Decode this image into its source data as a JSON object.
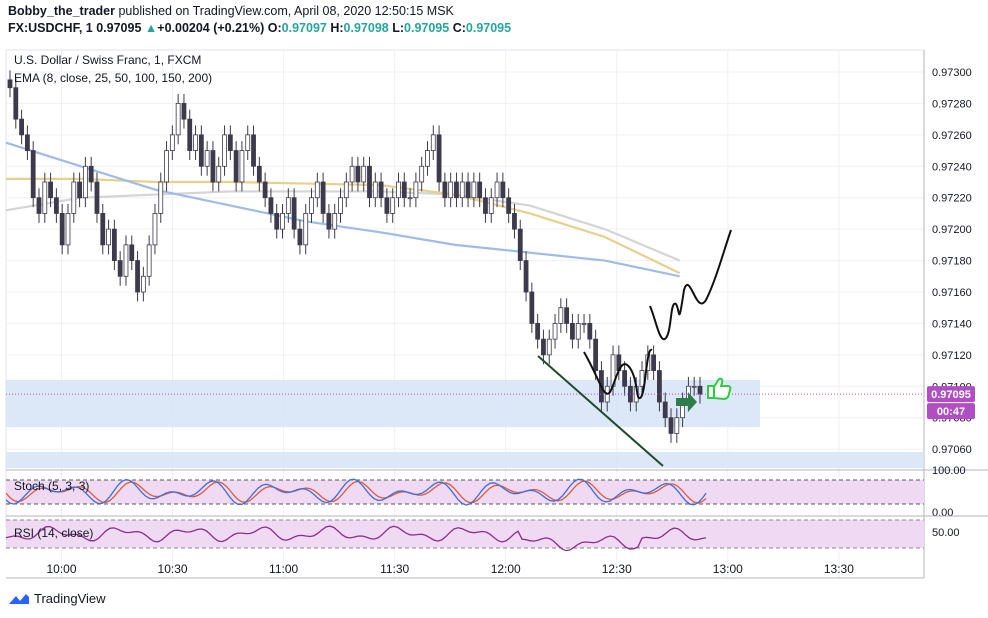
{
  "header": {
    "author": "Bobby_the_trader",
    "published_text": "published on TradingView.com, April 08, 2020 12:50:15 MSK",
    "symbol": "FX:USDCHF, 1",
    "last": "0.97095",
    "change_arrow": "▲",
    "change": "+0.00204 (+0.21%)",
    "open_label": "O:",
    "open": "0.97097",
    "high_label": "H:",
    "high": "0.97098",
    "low_label": "L:",
    "low": "0.97095",
    "close_label": "C:",
    "close": "0.97095"
  },
  "legend": {
    "pair": "U.S. Dollar / Swiss Franc, 1, FXCM",
    "ema": "EMA (8, close, 25, 50, 100, 150, 200)"
  },
  "stoch_label": "Stoch (5, 3, 3)",
  "rsi_label": "RSI (14, close)",
  "price_badge": "0.97095",
  "countdown_badge": "00:47",
  "stoch_axis": [
    "100.00",
    "0.00"
  ],
  "rsi_axis": [
    "50.00"
  ],
  "footer_logo": "TradingView",
  "colors": {
    "up": "#26a69a",
    "candle": "#3c3a4b",
    "ema_blue": "#9fbbe8",
    "ema_yellow": "#e8cf8c",
    "ema_grey": "#d4d4d4",
    "zone": "#d6e4f7",
    "badge": "#b04fc4",
    "stoch_k": "#3b6fd9",
    "stoch_d": "#e05a3a",
    "rsi": "#8a2f8a",
    "osc_bg": "#efd9f3"
  },
  "chart_data": {
    "type": "candlestick",
    "y_ticks": [
      0.973,
      0.9728,
      0.9726,
      0.9724,
      0.9722,
      0.972,
      0.9718,
      0.9716,
      0.9714,
      0.9712,
      0.971,
      0.9708,
      0.9706
    ],
    "y_tick_labels": [
      "0.97300",
      "0.97280",
      "0.97260",
      "0.97240",
      "0.97220",
      "0.97200",
      "0.97180",
      "0.97160",
      "0.97140",
      "0.97120",
      "0.97100",
      "0.97080",
      "0.97060"
    ],
    "ylim": [
      0.97048,
      0.97314
    ],
    "x_tick_labels": [
      "10:00",
      "10:30",
      "11:00",
      "11:30",
      "12:00",
      "12:30",
      "13:00",
      "13:30"
    ],
    "x_tick_minutes": [
      600,
      630,
      660,
      690,
      720,
      750,
      780,
      810
    ],
    "xlim_minutes": [
      585,
      833
    ],
    "current_price": 0.97095,
    "close_series": [
      0.9729,
      0.9727,
      0.9726,
      0.9725,
      0.9722,
      0.9721,
      0.9723,
      0.9722,
      0.9721,
      0.9719,
      0.9721,
      0.9723,
      0.9722,
      0.9724,
      0.9723,
      0.9721,
      0.9719,
      0.972,
      0.9718,
      0.9717,
      0.9719,
      0.9718,
      0.9716,
      0.9717,
      0.9719,
      0.9721,
      0.9723,
      0.9725,
      0.9726,
      0.9728,
      0.9727,
      0.9725,
      0.9726,
      0.9724,
      0.9725,
      0.9723,
      0.9724,
      0.9726,
      0.9725,
      0.9723,
      0.9725,
      0.9726,
      0.9724,
      0.9723,
      0.9722,
      0.9721,
      0.972,
      0.9721,
      0.9722,
      0.972,
      0.9719,
      0.9721,
      0.9722,
      0.9723,
      0.9721,
      0.972,
      0.9721,
      0.9722,
      0.9723,
      0.9724,
      0.9723,
      0.9724,
      0.9722,
      0.9723,
      0.9722,
      0.9721,
      0.9722,
      0.9723,
      0.9722,
      0.9722,
      0.9723,
      0.9724,
      0.9725,
      0.9726,
      0.9723,
      0.9722,
      0.9723,
      0.9722,
      0.9723,
      0.9722,
      0.9723,
      0.9722,
      0.9721,
      0.9722,
      0.9723,
      0.9722,
      0.9721,
      0.972,
      0.9718,
      0.9716,
      0.9714,
      0.9713,
      0.9712,
      0.9713,
      0.9714,
      0.9715,
      0.9714,
      0.9713,
      0.9714,
      0.9714,
      0.9713,
      0.9711,
      0.9709,
      0.971,
      0.9712,
      0.9711,
      0.971,
      0.9709,
      0.971,
      0.9711,
      0.9712,
      0.9711,
      0.9709,
      0.9708,
      0.9707,
      0.9708,
      0.9709,
      0.971,
      0.971,
      0.97095
    ],
    "ema_fast": [
      0.97255,
      0.9724,
      0.97225,
      0.97215,
      0.97205,
      0.97198,
      0.9719,
      0.97185,
      0.9718,
      0.9717
    ],
    "ema_mid": [
      0.97232,
      0.97232,
      0.9723,
      0.9723,
      0.97229,
      0.97228,
      0.97222,
      0.9721,
      0.97195,
      0.97172
    ],
    "ema_slow": [
      0.97212,
      0.9722,
      0.97222,
      0.97224,
      0.97224,
      0.97224,
      0.97222,
      0.97215,
      0.972,
      0.9718
    ],
    "support_zone": [
      0.97074,
      0.97104
    ]
  }
}
